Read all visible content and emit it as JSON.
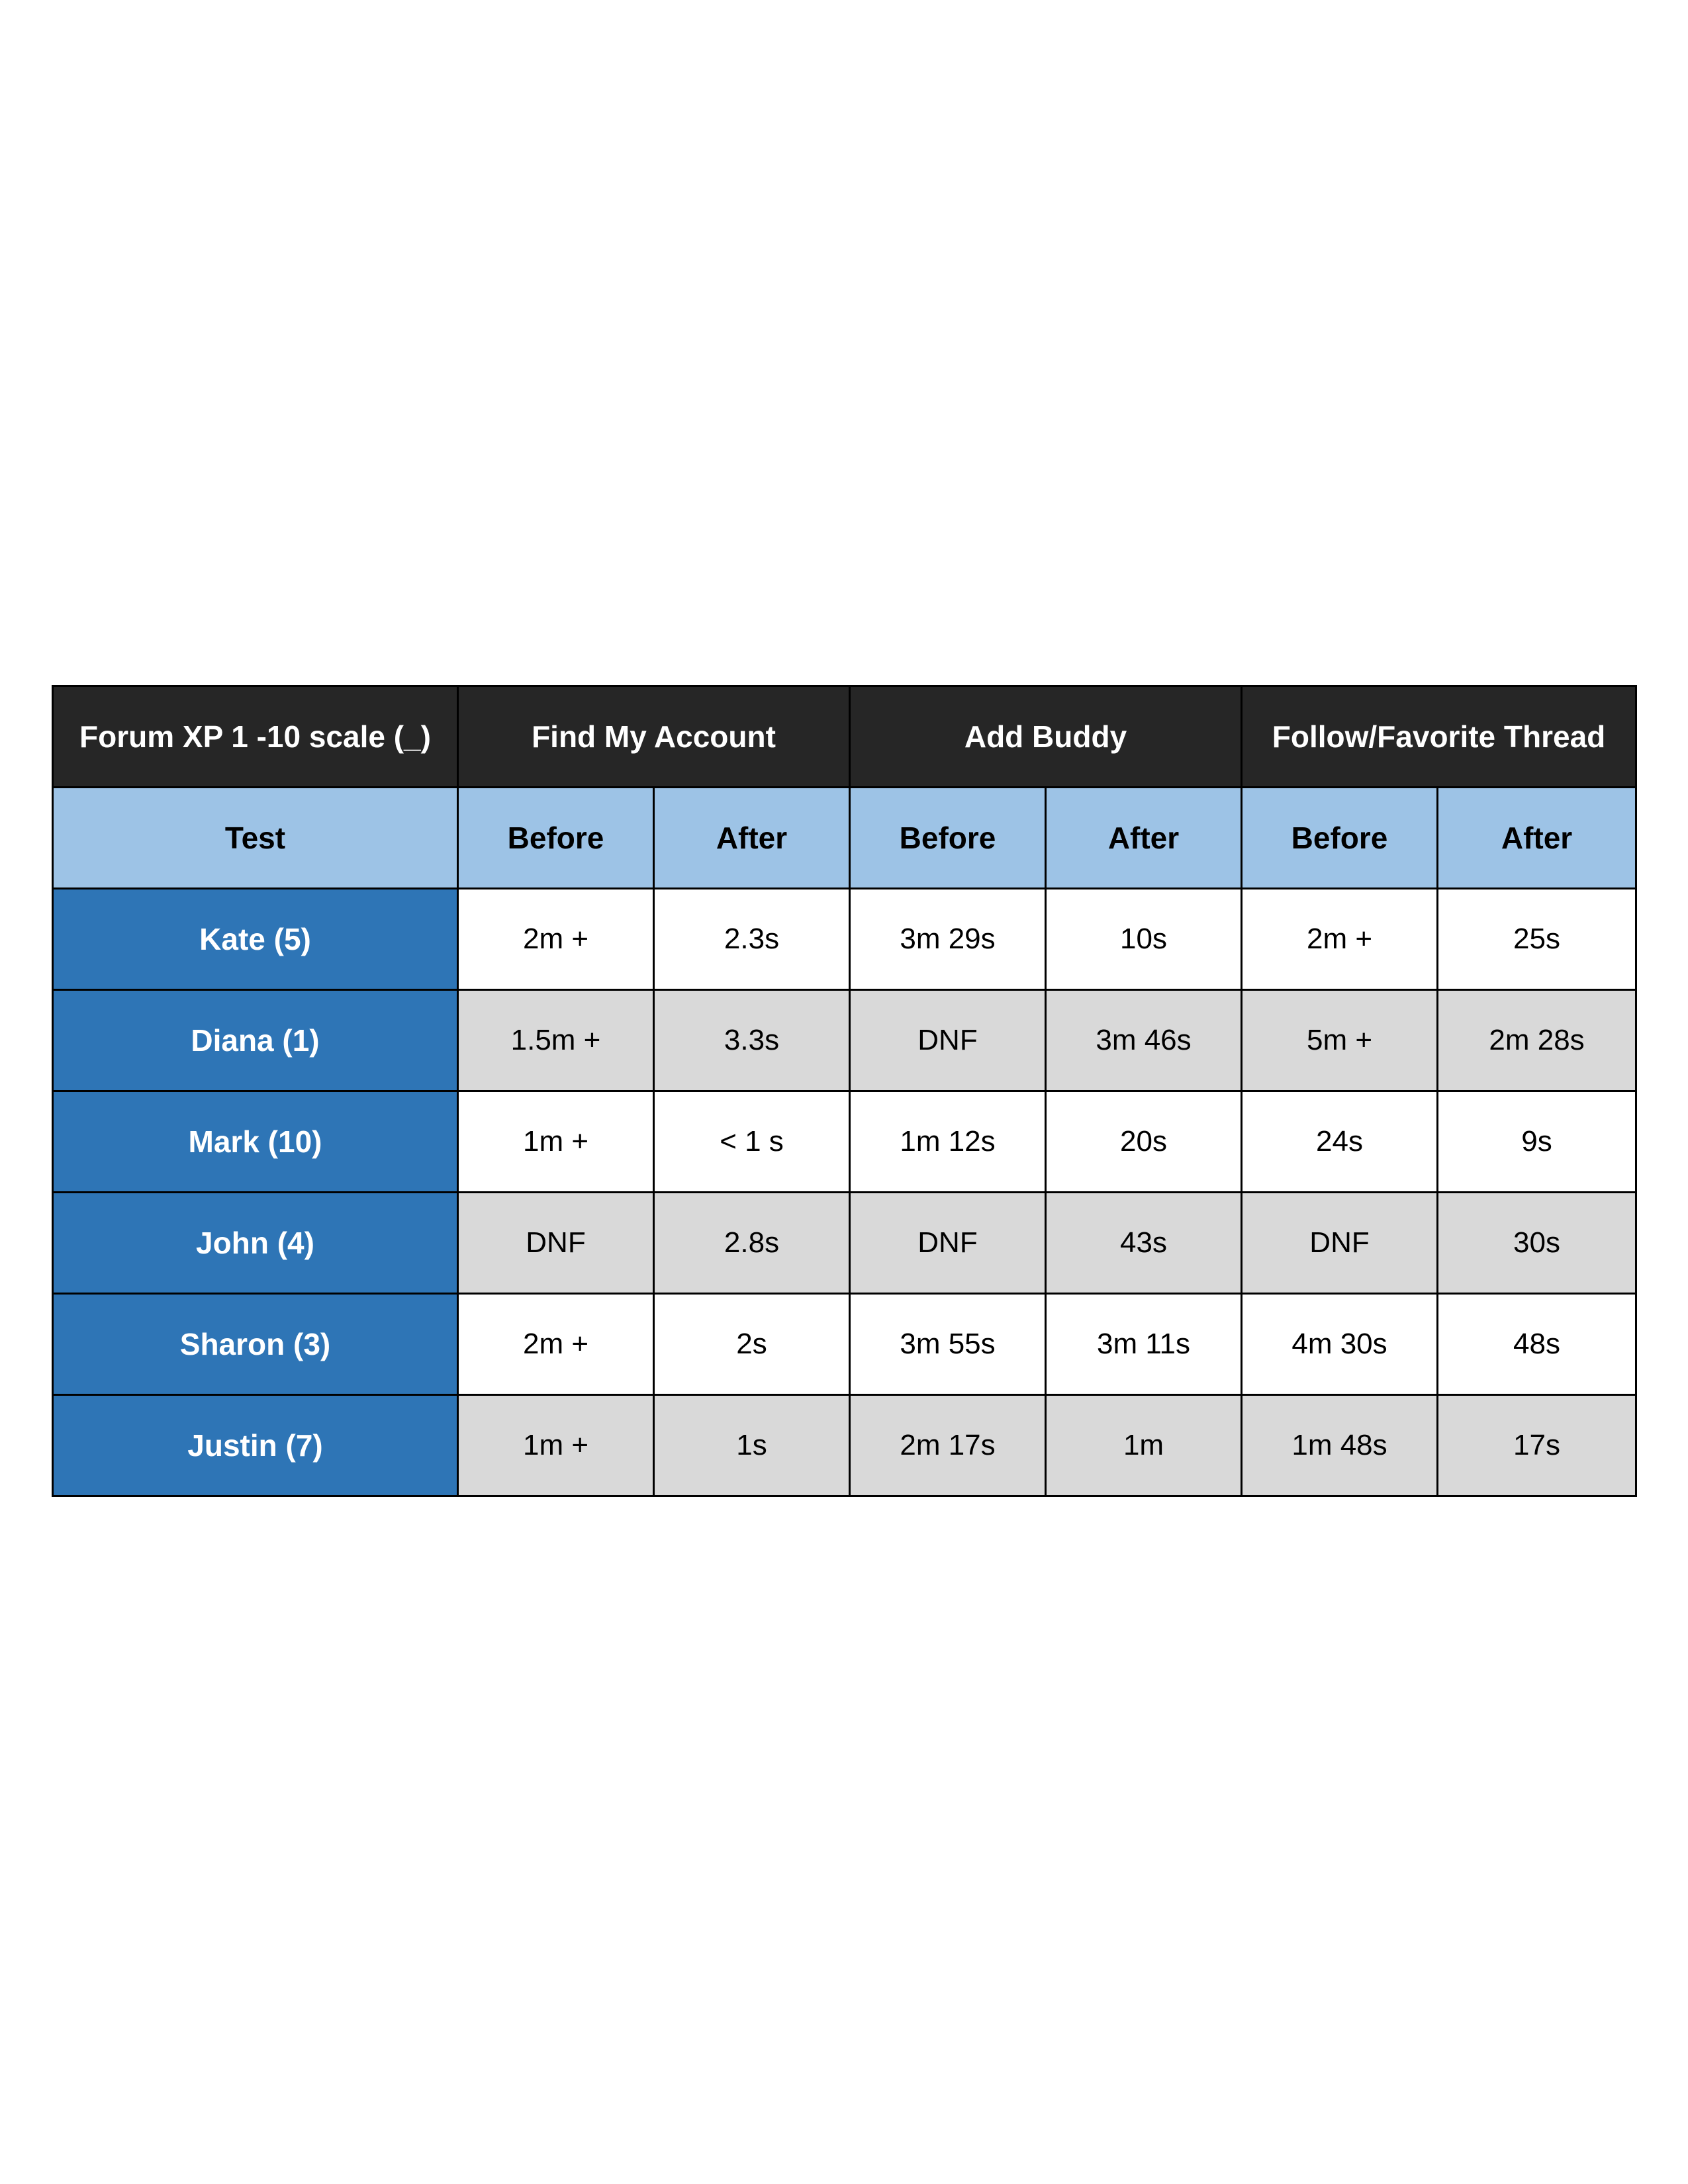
{
  "table": {
    "corner_header": "Forum XP 1 -10 scale (_)",
    "task_headers": [
      "Find My Account",
      "Add Buddy",
      "Follow/Favorite Thread"
    ],
    "row_label_header": "Test",
    "sub_headers": [
      "Before",
      "After",
      "Before",
      "After",
      "Before",
      "After"
    ],
    "rows": [
      {
        "name": "Kate (5)",
        "values": [
          "2m +",
          "2.3s",
          "3m 29s",
          "10s",
          "2m +",
          "25s"
        ]
      },
      {
        "name": "Diana (1)",
        "values": [
          "1.5m +",
          "3.3s",
          "DNF",
          "3m 46s",
          "5m +",
          "2m 28s"
        ]
      },
      {
        "name": "Mark (10)",
        "values": [
          "1m +",
          "< 1 s",
          "1m 12s",
          "20s",
          "24s",
          "9s"
        ]
      },
      {
        "name": "John (4)",
        "values": [
          "DNF",
          "2.8s",
          "DNF",
          "43s",
          "DNF",
          "30s"
        ]
      },
      {
        "name": "Sharon (3)",
        "values": [
          "2m +",
          "2s",
          "3m 55s",
          "3m 11s",
          "4m 30s",
          "48s"
        ]
      },
      {
        "name": "Justin (7)",
        "values": [
          "1m +",
          "1s",
          "2m 17s",
          "1m",
          "1m 48s",
          "17s"
        ]
      }
    ]
  },
  "colors": {
    "header_dark": "#262626",
    "subheader_light_blue": "#9dc3e6",
    "name_column_blue": "#2e75b6",
    "row_alt_gray": "#d9d9d9"
  }
}
